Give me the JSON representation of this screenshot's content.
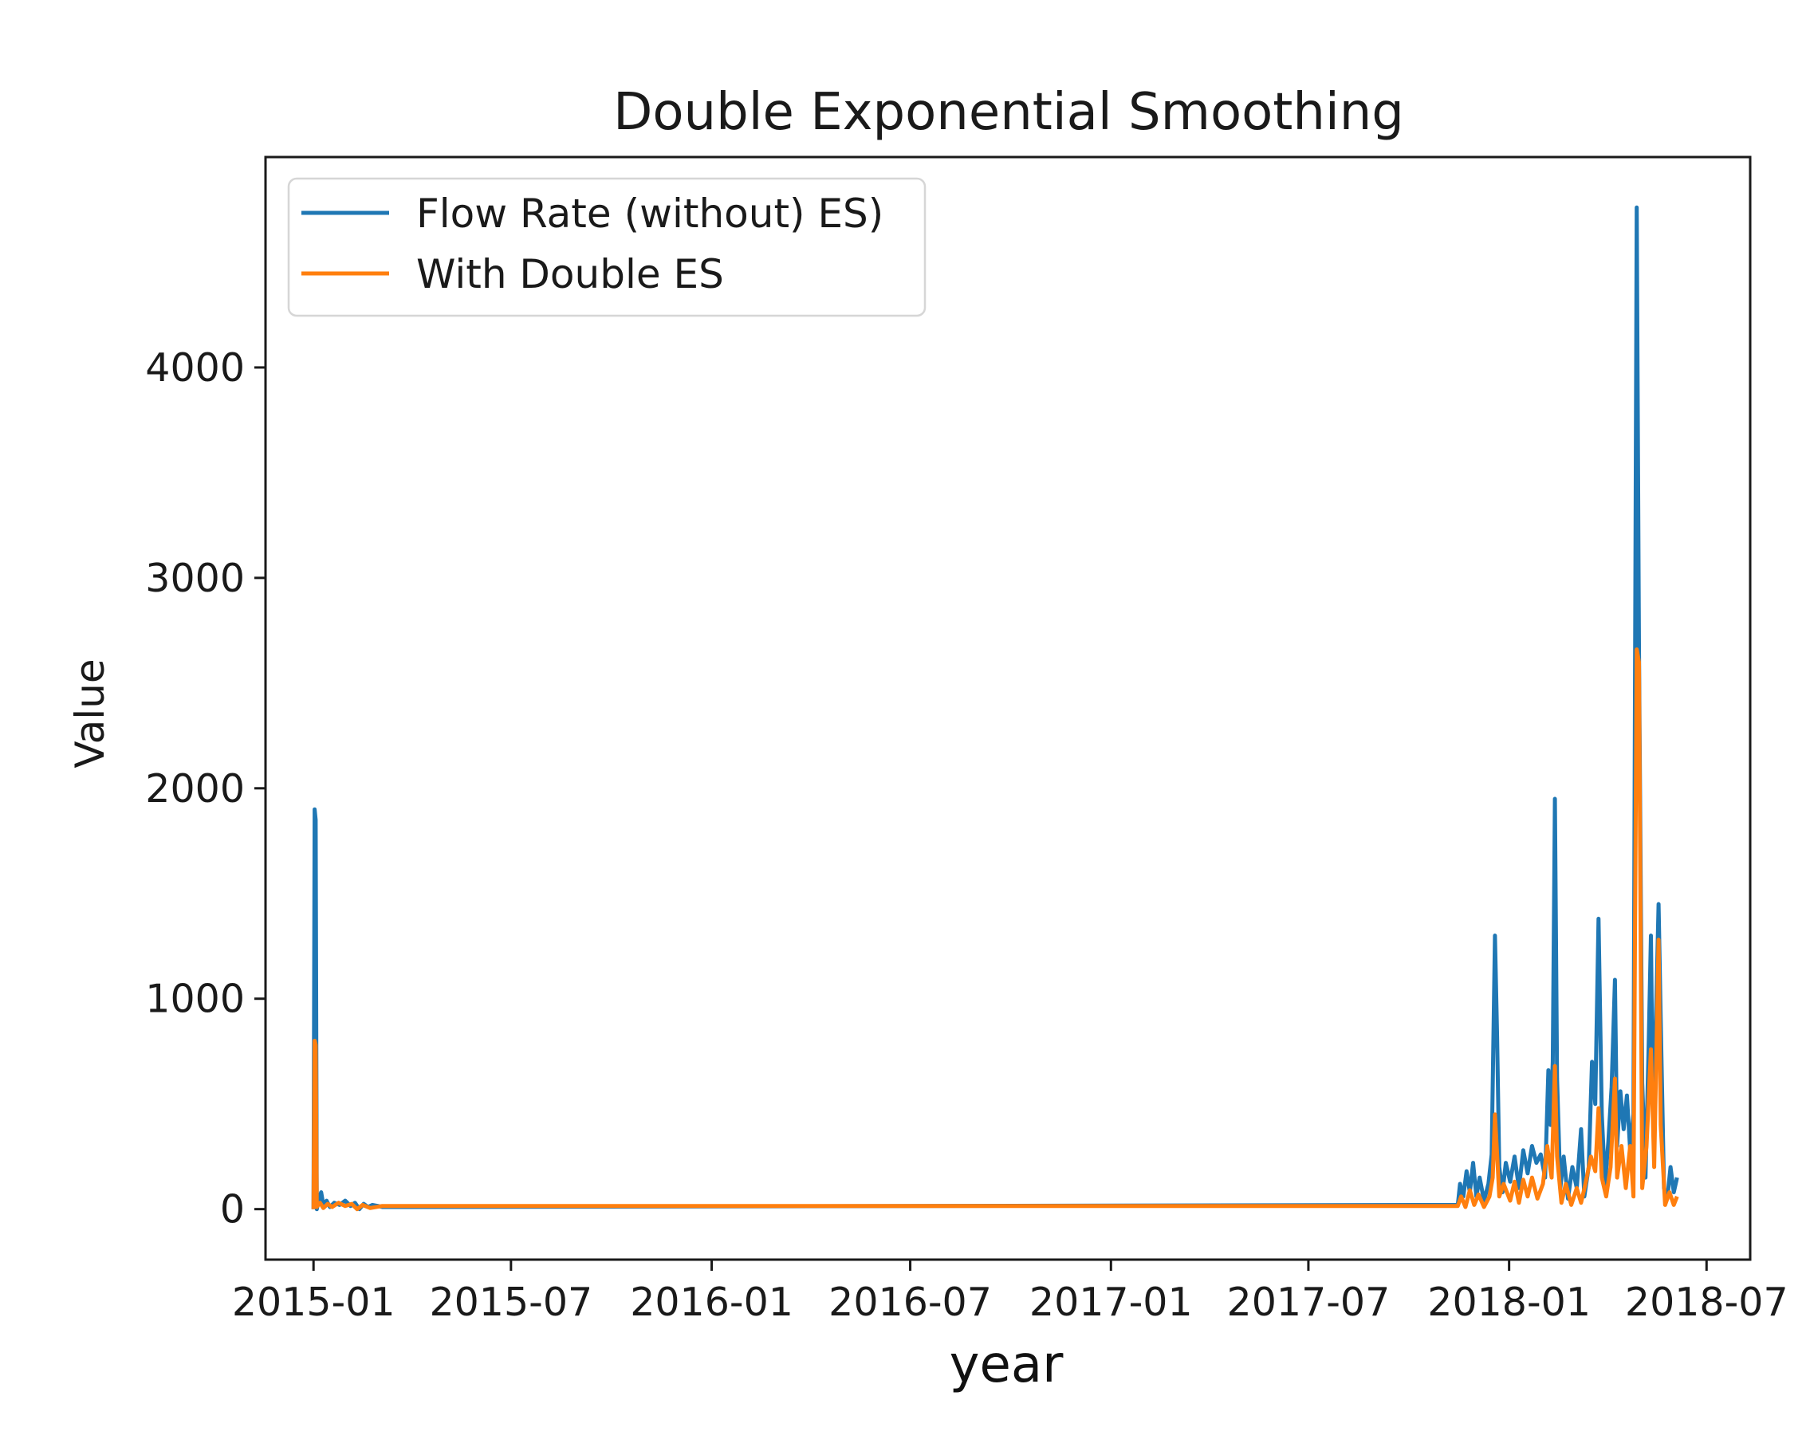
{
  "chart_data": {
    "type": "line",
    "title": "Double Exponential Smoothing",
    "xlabel": "year",
    "ylabel": "Value",
    "xlim": [
      "2014-11-18",
      "2018-08-10"
    ],
    "ylim": [
      -240,
      5000
    ],
    "x_ticks": [
      "2015-01",
      "2015-07",
      "2016-01",
      "2016-07",
      "2017-01",
      "2017-07",
      "2018-01",
      "2018-07"
    ],
    "y_ticks": [
      0,
      1000,
      2000,
      3000,
      4000
    ],
    "grid": false,
    "legend_position": "upper-left",
    "series": [
      {
        "name": "Flow Rate (without) ES)",
        "color": "#1f77b4",
        "points": [
          [
            "2015-01-01",
            0
          ],
          [
            "2015-01-02",
            1900
          ],
          [
            "2015-01-03",
            1850
          ],
          [
            "2015-01-04",
            0
          ],
          [
            "2015-01-06",
            50
          ],
          [
            "2015-01-08",
            80
          ],
          [
            "2015-01-10",
            20
          ],
          [
            "2015-01-13",
            40
          ],
          [
            "2015-01-16",
            10
          ],
          [
            "2015-01-20",
            30
          ],
          [
            "2015-01-25",
            20
          ],
          [
            "2015-01-30",
            40
          ],
          [
            "2015-02-04",
            15
          ],
          [
            "2015-02-08",
            30
          ],
          [
            "2015-02-12",
            0
          ],
          [
            "2015-02-16",
            25
          ],
          [
            "2015-02-20",
            10
          ],
          [
            "2015-02-24",
            20
          ],
          [
            "2015-03-01",
            15
          ],
          [
            "2015-03-05",
            10
          ],
          [
            "2017-11-15",
            20
          ],
          [
            "2017-11-17",
            120
          ],
          [
            "2017-11-20",
            60
          ],
          [
            "2017-11-23",
            180
          ],
          [
            "2017-11-26",
            80
          ],
          [
            "2017-11-29",
            220
          ],
          [
            "2017-12-02",
            60
          ],
          [
            "2017-12-05",
            150
          ],
          [
            "2017-12-09",
            40
          ],
          [
            "2017-12-13",
            120
          ],
          [
            "2017-12-16",
            260
          ],
          [
            "2017-12-19",
            1300
          ],
          [
            "2017-12-21",
            820
          ],
          [
            "2017-12-23",
            200
          ],
          [
            "2017-12-26",
            80
          ],
          [
            "2017-12-29",
            220
          ],
          [
            "2018-01-02",
            130
          ],
          [
            "2018-01-06",
            250
          ],
          [
            "2018-01-10",
            100
          ],
          [
            "2018-01-14",
            280
          ],
          [
            "2018-01-18",
            170
          ],
          [
            "2018-01-22",
            300
          ],
          [
            "2018-01-26",
            220
          ],
          [
            "2018-01-30",
            260
          ],
          [
            "2018-02-03",
            150
          ],
          [
            "2018-02-06",
            660
          ],
          [
            "2018-02-08",
            400
          ],
          [
            "2018-02-10",
            700
          ],
          [
            "2018-02-12",
            1950
          ],
          [
            "2018-02-14",
            620
          ],
          [
            "2018-02-17",
            100
          ],
          [
            "2018-02-20",
            250
          ],
          [
            "2018-02-24",
            50
          ],
          [
            "2018-02-28",
            200
          ],
          [
            "2018-03-04",
            100
          ],
          [
            "2018-03-08",
            380
          ],
          [
            "2018-03-11",
            60
          ],
          [
            "2018-03-15",
            200
          ],
          [
            "2018-03-18",
            700
          ],
          [
            "2018-03-21",
            500
          ],
          [
            "2018-03-24",
            1380
          ],
          [
            "2018-03-27",
            450
          ],
          [
            "2018-03-30",
            120
          ],
          [
            "2018-04-02",
            320
          ],
          [
            "2018-04-05",
            580
          ],
          [
            "2018-04-08",
            1090
          ],
          [
            "2018-04-10",
            300
          ],
          [
            "2018-04-13",
            560
          ],
          [
            "2018-04-16",
            380
          ],
          [
            "2018-04-19",
            540
          ],
          [
            "2018-04-22",
            280
          ],
          [
            "2018-04-25",
            450
          ],
          [
            "2018-04-28",
            4760
          ],
          [
            "2018-04-30",
            2680
          ],
          [
            "2018-05-03",
            600
          ],
          [
            "2018-05-06",
            150
          ],
          [
            "2018-05-09",
            800
          ],
          [
            "2018-05-11",
            1300
          ],
          [
            "2018-05-13",
            420
          ],
          [
            "2018-05-15",
            760
          ],
          [
            "2018-05-18",
            1450
          ],
          [
            "2018-05-20",
            900
          ],
          [
            "2018-05-23",
            100
          ],
          [
            "2018-05-26",
            50
          ],
          [
            "2018-05-29",
            200
          ],
          [
            "2018-06-01",
            80
          ],
          [
            "2018-06-04",
            150
          ]
        ]
      },
      {
        "name": "With Double ES",
        "color": "#ff7f0e",
        "points": [
          [
            "2015-01-01",
            0
          ],
          [
            "2015-01-02",
            800
          ],
          [
            "2015-01-03",
            780
          ],
          [
            "2015-01-04",
            10
          ],
          [
            "2015-01-07",
            30
          ],
          [
            "2015-01-10",
            5
          ],
          [
            "2015-01-14",
            25
          ],
          [
            "2015-01-18",
            10
          ],
          [
            "2015-01-24",
            30
          ],
          [
            "2015-01-30",
            15
          ],
          [
            "2015-02-05",
            25
          ],
          [
            "2015-02-10",
            0
          ],
          [
            "2015-02-15",
            20
          ],
          [
            "2015-02-22",
            5
          ],
          [
            "2015-03-05",
            15
          ],
          [
            "2017-11-15",
            15
          ],
          [
            "2017-11-18",
            60
          ],
          [
            "2017-11-22",
            10
          ],
          [
            "2017-11-26",
            90
          ],
          [
            "2017-11-30",
            20
          ],
          [
            "2017-12-04",
            70
          ],
          [
            "2017-12-09",
            10
          ],
          [
            "2017-12-14",
            60
          ],
          [
            "2017-12-17",
            150
          ],
          [
            "2017-12-19",
            450
          ],
          [
            "2017-12-21",
            260
          ],
          [
            "2017-12-23",
            60
          ],
          [
            "2017-12-27",
            120
          ],
          [
            "2018-01-02",
            40
          ],
          [
            "2018-01-06",
            130
          ],
          [
            "2018-01-10",
            30
          ],
          [
            "2018-01-14",
            140
          ],
          [
            "2018-01-18",
            60
          ],
          [
            "2018-01-22",
            150
          ],
          [
            "2018-01-27",
            50
          ],
          [
            "2018-02-01",
            120
          ],
          [
            "2018-02-05",
            300
          ],
          [
            "2018-02-09",
            150
          ],
          [
            "2018-02-12",
            680
          ],
          [
            "2018-02-14",
            250
          ],
          [
            "2018-02-18",
            30
          ],
          [
            "2018-02-22",
            120
          ],
          [
            "2018-02-27",
            20
          ],
          [
            "2018-03-04",
            100
          ],
          [
            "2018-03-08",
            30
          ],
          [
            "2018-03-12",
            120
          ],
          [
            "2018-03-17",
            250
          ],
          [
            "2018-03-21",
            180
          ],
          [
            "2018-03-24",
            480
          ],
          [
            "2018-03-27",
            150
          ],
          [
            "2018-03-31",
            60
          ],
          [
            "2018-04-04",
            200
          ],
          [
            "2018-04-08",
            620
          ],
          [
            "2018-04-10",
            150
          ],
          [
            "2018-04-14",
            300
          ],
          [
            "2018-04-18",
            100
          ],
          [
            "2018-04-22",
            300
          ],
          [
            "2018-04-25",
            60
          ],
          [
            "2018-04-28",
            2660
          ],
          [
            "2018-04-30",
            2600
          ],
          [
            "2018-05-03",
            100
          ],
          [
            "2018-05-07",
            300
          ],
          [
            "2018-05-11",
            760
          ],
          [
            "2018-05-14",
            200
          ],
          [
            "2018-05-18",
            1280
          ],
          [
            "2018-05-20",
            400
          ],
          [
            "2018-05-24",
            20
          ],
          [
            "2018-05-28",
            80
          ],
          [
            "2018-06-01",
            20
          ],
          [
            "2018-06-04",
            60
          ]
        ]
      }
    ]
  }
}
